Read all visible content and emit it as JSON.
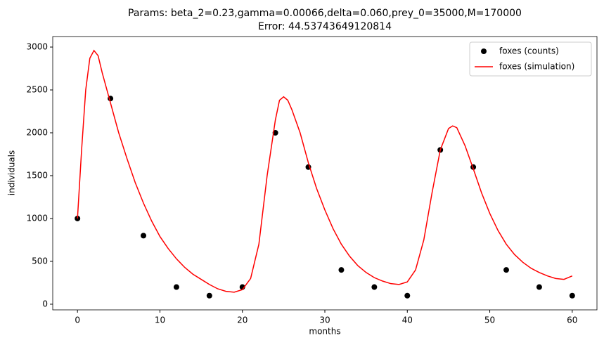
{
  "chart_data": {
    "type": "line",
    "title": "Params: beta_2=0.23,gamma=0.00066,delta=0.060,prey_0=35000,M=170000",
    "subtitle": "Error: 44.53743649120814",
    "x_label": "months",
    "y_label": "individuals",
    "xlim": [
      -3,
      63
    ],
    "ylim": [
      -66,
      3123
    ],
    "xticks": [
      0,
      10,
      20,
      30,
      40,
      50,
      60
    ],
    "yticks": [
      0,
      500,
      1000,
      1500,
      2000,
      2500,
      3000
    ],
    "grid": false,
    "legend": "upper right",
    "series": [
      {
        "name": "foxes (counts)",
        "type": "scatter",
        "color": "#000000",
        "x": [
          0,
          4,
          8,
          12,
          16,
          20,
          24,
          28,
          32,
          36,
          40,
          44,
          48,
          52,
          56,
          60
        ],
        "values": [
          1000,
          2400,
          800,
          200,
          100,
          200,
          2000,
          1600,
          400,
          200,
          100,
          1800,
          1600,
          400,
          200,
          100
        ]
      },
      {
        "name": "foxes (simulation)",
        "type": "line",
        "color": "#ff0000",
        "x": [
          0,
          0.5,
          1,
          1.5,
          2,
          2.5,
          3,
          4,
          5,
          6,
          7,
          8,
          9,
          10,
          11,
          12,
          13,
          14,
          15,
          16,
          17,
          18,
          19,
          20,
          21,
          22,
          23,
          24,
          24.5,
          25,
          25.5,
          26,
          27,
          28,
          29,
          30,
          31,
          32,
          33,
          34,
          35,
          36,
          37,
          38,
          39,
          40,
          41,
          42,
          43,
          44,
          45,
          45.5,
          46,
          47,
          48,
          49,
          50,
          51,
          52,
          53,
          54,
          55,
          56,
          57,
          58,
          59,
          60
        ],
        "values": [
          1000,
          1800,
          2500,
          2870,
          2960,
          2900,
          2700,
          2350,
          2000,
          1700,
          1420,
          1180,
          970,
          790,
          650,
          530,
          430,
          350,
          290,
          230,
          180,
          150,
          140,
          170,
          300,
          700,
          1500,
          2150,
          2380,
          2420,
          2380,
          2270,
          2000,
          1650,
          1350,
          1100,
          880,
          700,
          560,
          450,
          370,
          310,
          270,
          240,
          230,
          260,
          400,
          750,
          1300,
          1800,
          2050,
          2080,
          2060,
          1850,
          1580,
          1300,
          1060,
          860,
          700,
          580,
          490,
          420,
          370,
          330,
          300,
          290,
          330
        ]
      }
    ]
  }
}
